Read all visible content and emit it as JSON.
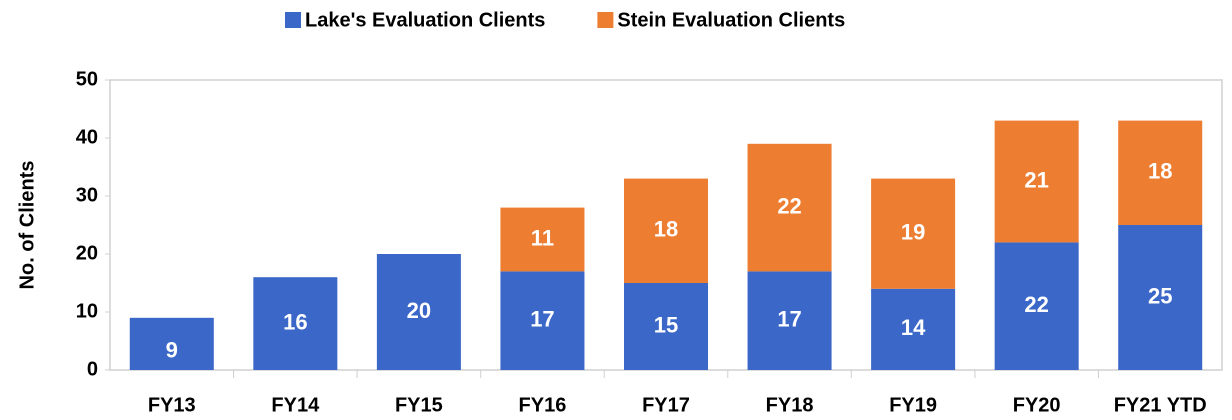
{
  "chart_data": {
    "type": "stacked_bar",
    "y_label": "No. of Clients",
    "categories": [
      "FY13",
      "FY14",
      "FY15",
      "FY16",
      "FY17",
      "FY18",
      "FY19",
      "FY20",
      "FY21 YTD"
    ],
    "series": [
      {
        "name": "Lake's Evaluation Clients",
        "color": "#3a67c8",
        "values": [
          9,
          16,
          20,
          17,
          15,
          17,
          14,
          22,
          25
        ]
      },
      {
        "name": "Stein Evaluation Clients",
        "color": "#ed7d31",
        "values": [
          null,
          null,
          null,
          11,
          18,
          22,
          19,
          21,
          18
        ]
      }
    ],
    "ylim": [
      0,
      50
    ],
    "yticks": [
      0,
      10,
      20,
      30,
      40,
      50
    ],
    "grid": false,
    "legend": "top"
  }
}
